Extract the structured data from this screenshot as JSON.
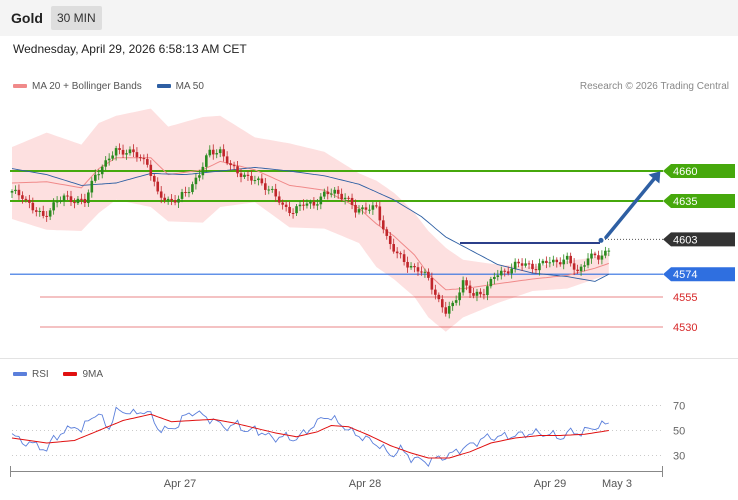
{
  "header": {
    "symbol": "Gold",
    "timeframe": "30 MIN"
  },
  "datetime": "Wednesday, April 29, 2026 6:58:13 AM CET",
  "legend": {
    "items": [
      {
        "label": "MA 20 + Bollinger Bands",
        "color": "#f08a8a"
      },
      {
        "label": "MA 50",
        "color": "#2e5fa3"
      }
    ],
    "copyright": "Research © 2026 Trading Central"
  },
  "rsi_legend": {
    "items": [
      {
        "label": "RSI",
        "color": "#5b7fdb"
      },
      {
        "label": "9MA",
        "color": "#e01010"
      }
    ]
  },
  "chart_data": [
    {
      "type": "candlestick",
      "title": "",
      "ylim": [
        4515,
        4715
      ],
      "grid": false,
      "x_ticks": [
        "Apr 27",
        "Apr 28",
        "Apr 29",
        "May 3"
      ],
      "price_tags": [
        {
          "label": "4660",
          "value": 4660,
          "kind": "resistance",
          "color": "#46a80c"
        },
        {
          "label": "4635",
          "value": 4635,
          "kind": "resistance",
          "color": "#46a80c"
        },
        {
          "label": "4603",
          "value": 4603,
          "kind": "last",
          "color": "#333333"
        },
        {
          "label": "4574",
          "value": 4574,
          "kind": "support",
          "color": "#2f6fe0"
        }
      ],
      "price_levels": [
        {
          "label": "4555",
          "value": 4555,
          "color": "#d62728"
        },
        {
          "label": "4530",
          "value": 4530,
          "color": "#d62728"
        }
      ],
      "pivot_value": 4600,
      "target_value": 4660,
      "bullet_value": 4603,
      "close_anchors": [
        [
          0,
          4642
        ],
        [
          3,
          4640
        ],
        [
          6,
          4628
        ],
        [
          9,
          4622
        ],
        [
          12,
          4632
        ],
        [
          15,
          4638
        ],
        [
          18,
          4636
        ],
        [
          21,
          4634
        ],
        [
          24,
          4658
        ],
        [
          27,
          4666
        ],
        [
          30,
          4678
        ],
        [
          33,
          4676
        ],
        [
          36,
          4673
        ],
        [
          39,
          4667
        ],
        [
          42,
          4640
        ],
        [
          45,
          4636
        ],
        [
          48,
          4636
        ],
        [
          51,
          4645
        ],
        [
          54,
          4658
        ],
        [
          57,
          4676
        ],
        [
          60,
          4677
        ],
        [
          63,
          4663
        ],
        [
          66,
          4658
        ],
        [
          69,
          4653
        ],
        [
          72,
          4650
        ],
        [
          75,
          4643
        ],
        [
          78,
          4630
        ],
        [
          81,
          4627
        ],
        [
          84,
          4632
        ],
        [
          87,
          4633
        ],
        [
          90,
          4640
        ],
        [
          93,
          4643
        ],
        [
          96,
          4638
        ],
        [
          99,
          4627
        ],
        [
          102,
          4630
        ],
        [
          105,
          4628
        ],
        [
          108,
          4605
        ],
        [
          111,
          4590
        ],
        [
          114,
          4582
        ],
        [
          117,
          4578
        ],
        [
          120,
          4570
        ],
        [
          123,
          4552
        ],
        [
          125,
          4542
        ],
        [
          127,
          4548
        ],
        [
          130,
          4568
        ],
        [
          133,
          4555
        ],
        [
          136,
          4560
        ],
        [
          139,
          4572
        ],
        [
          142,
          4576
        ],
        [
          145,
          4582
        ],
        [
          148,
          4582
        ],
        [
          151,
          4580
        ],
        [
          154,
          4584
        ],
        [
          157,
          4585
        ],
        [
          160,
          4586
        ],
        [
          163,
          4576
        ],
        [
          166,
          4588
        ],
        [
          169,
          4588
        ],
        [
          172,
          4595
        ]
      ],
      "bb_upper_anchors": [
        [
          0,
          4680
        ],
        [
          10,
          4692
        ],
        [
          20,
          4682
        ],
        [
          25,
          4700
        ],
        [
          30,
          4706
        ],
        [
          40,
          4712
        ],
        [
          45,
          4697
        ],
        [
          55,
          4705
        ],
        [
          60,
          4706
        ],
        [
          70,
          4688
        ],
        [
          80,
          4683
        ],
        [
          90,
          4676
        ],
        [
          100,
          4658
        ],
        [
          105,
          4652
        ],
        [
          110,
          4642
        ],
        [
          113,
          4634
        ],
        [
          116,
          4625
        ],
        [
          120,
          4610
        ],
        [
          125,
          4596
        ],
        [
          130,
          4586
        ],
        [
          140,
          4582
        ],
        [
          150,
          4580
        ],
        [
          160,
          4585
        ],
        [
          168,
          4588
        ],
        [
          172,
          4592
        ]
      ],
      "bb_lower_anchors": [
        [
          0,
          4620
        ],
        [
          10,
          4611
        ],
        [
          20,
          4610
        ],
        [
          25,
          4625
        ],
        [
          30,
          4636
        ],
        [
          40,
          4630
        ],
        [
          45,
          4618
        ],
        [
          55,
          4617
        ],
        [
          60,
          4630
        ],
        [
          70,
          4634
        ],
        [
          80,
          4613
        ],
        [
          90,
          4612
        ],
        [
          100,
          4600
        ],
        [
          105,
          4580
        ],
        [
          110,
          4570
        ],
        [
          116,
          4555
        ],
        [
          120,
          4538
        ],
        [
          125,
          4526
        ],
        [
          130,
          4538
        ],
        [
          140,
          4550
        ],
        [
          150,
          4560
        ],
        [
          160,
          4562
        ],
        [
          168,
          4570
        ],
        [
          172,
          4574
        ]
      ],
      "ma20_anchors": [
        [
          0,
          4650
        ],
        [
          10,
          4651
        ],
        [
          20,
          4646
        ],
        [
          25,
          4662
        ],
        [
          30,
          4671
        ],
        [
          40,
          4671
        ],
        [
          45,
          4657
        ],
        [
          55,
          4661
        ],
        [
          60,
          4668
        ],
        [
          70,
          4661
        ],
        [
          80,
          4648
        ],
        [
          90,
          4644
        ],
        [
          100,
          4629
        ],
        [
          105,
          4616
        ],
        [
          110,
          4606
        ],
        [
          116,
          4590
        ],
        [
          120,
          4574
        ],
        [
          125,
          4561
        ],
        [
          130,
          4562
        ],
        [
          140,
          4566
        ],
        [
          150,
          4570
        ],
        [
          160,
          4573
        ],
        [
          168,
          4579
        ],
        [
          172,
          4583
        ]
      ],
      "ma50_anchors": [
        [
          0,
          4662
        ],
        [
          10,
          4657
        ],
        [
          20,
          4648
        ],
        [
          30,
          4650
        ],
        [
          40,
          4658
        ],
        [
          50,
          4657
        ],
        [
          60,
          4660
        ],
        [
          70,
          4663
        ],
        [
          80,
          4660
        ],
        [
          90,
          4656
        ],
        [
          100,
          4649
        ],
        [
          110,
          4636
        ],
        [
          118,
          4622
        ],
        [
          125,
          4605
        ],
        [
          140,
          4582
        ],
        [
          150,
          4575
        ],
        [
          160,
          4572
        ],
        [
          168,
          4568
        ],
        [
          172,
          4574
        ]
      ]
    },
    {
      "type": "line",
      "title": "",
      "ylim": [
        20,
        80
      ],
      "y_ticks": [
        70,
        50,
        30
      ],
      "grid": true,
      "series": [
        {
          "name": "RSI",
          "color": "#5b7fdb",
          "anchors": [
            [
              0,
              46
            ],
            [
              4,
              40
            ],
            [
              8,
              38
            ],
            [
              10,
              33
            ],
            [
              12,
              45
            ],
            [
              15,
              48
            ],
            [
              18,
              55
            ],
            [
              20,
              48
            ],
            [
              22,
              60
            ],
            [
              24,
              62
            ],
            [
              26,
              60
            ],
            [
              28,
              52
            ],
            [
              30,
              65
            ],
            [
              32,
              66
            ],
            [
              35,
              63
            ],
            [
              38,
              66
            ],
            [
              40,
              62
            ],
            [
              42,
              52
            ],
            [
              45,
              50
            ],
            [
              48,
              55
            ],
            [
              50,
              62
            ],
            [
              52,
              65
            ],
            [
              55,
              62
            ],
            [
              58,
              58
            ],
            [
              60,
              55
            ],
            [
              63,
              52
            ],
            [
              65,
              56
            ],
            [
              68,
              48
            ],
            [
              70,
              52
            ],
            [
              73,
              46
            ],
            [
              76,
              44
            ],
            [
              79,
              45
            ],
            [
              82,
              43
            ],
            [
              85,
              50
            ],
            [
              88,
              56
            ],
            [
              90,
              62
            ],
            [
              93,
              58
            ],
            [
              95,
              55
            ],
            [
              97,
              50
            ],
            [
              100,
              46
            ],
            [
              103,
              42
            ],
            [
              106,
              38
            ],
            [
              109,
              30
            ],
            [
              112,
              35
            ],
            [
              115,
              28
            ],
            [
              118,
              26
            ],
            [
              120,
              25
            ],
            [
              123,
              28
            ],
            [
              126,
              30
            ],
            [
              129,
              35
            ],
            [
              132,
              38
            ],
            [
              136,
              44
            ],
            [
              140,
              45
            ],
            [
              145,
              46
            ],
            [
              150,
              48
            ],
            [
              155,
              47
            ],
            [
              158,
              44
            ],
            [
              161,
              49
            ],
            [
              164,
              48
            ],
            [
              167,
              52
            ],
            [
              170,
              54
            ],
            [
              172,
              56
            ]
          ]
        },
        {
          "name": "9MA",
          "color": "#e01010",
          "anchors": [
            [
              0,
              44
            ],
            [
              10,
              40
            ],
            [
              18,
              42
            ],
            [
              25,
              50
            ],
            [
              32,
              58
            ],
            [
              40,
              63
            ],
            [
              46,
              57
            ],
            [
              52,
              58
            ],
            [
              58,
              59
            ],
            [
              64,
              56
            ],
            [
              70,
              52
            ],
            [
              76,
              48
            ],
            [
              82,
              45
            ],
            [
              88,
              49
            ],
            [
              92,
              54
            ],
            [
              97,
              53
            ],
            [
              103,
              46
            ],
            [
              109,
              38
            ],
            [
              115,
              32
            ],
            [
              120,
              28
            ],
            [
              126,
              28
            ],
            [
              132,
              33
            ],
            [
              138,
              40
            ],
            [
              145,
              44
            ],
            [
              152,
              46
            ],
            [
              158,
              46
            ],
            [
              165,
              47
            ],
            [
              172,
              50
            ]
          ]
        }
      ]
    }
  ]
}
